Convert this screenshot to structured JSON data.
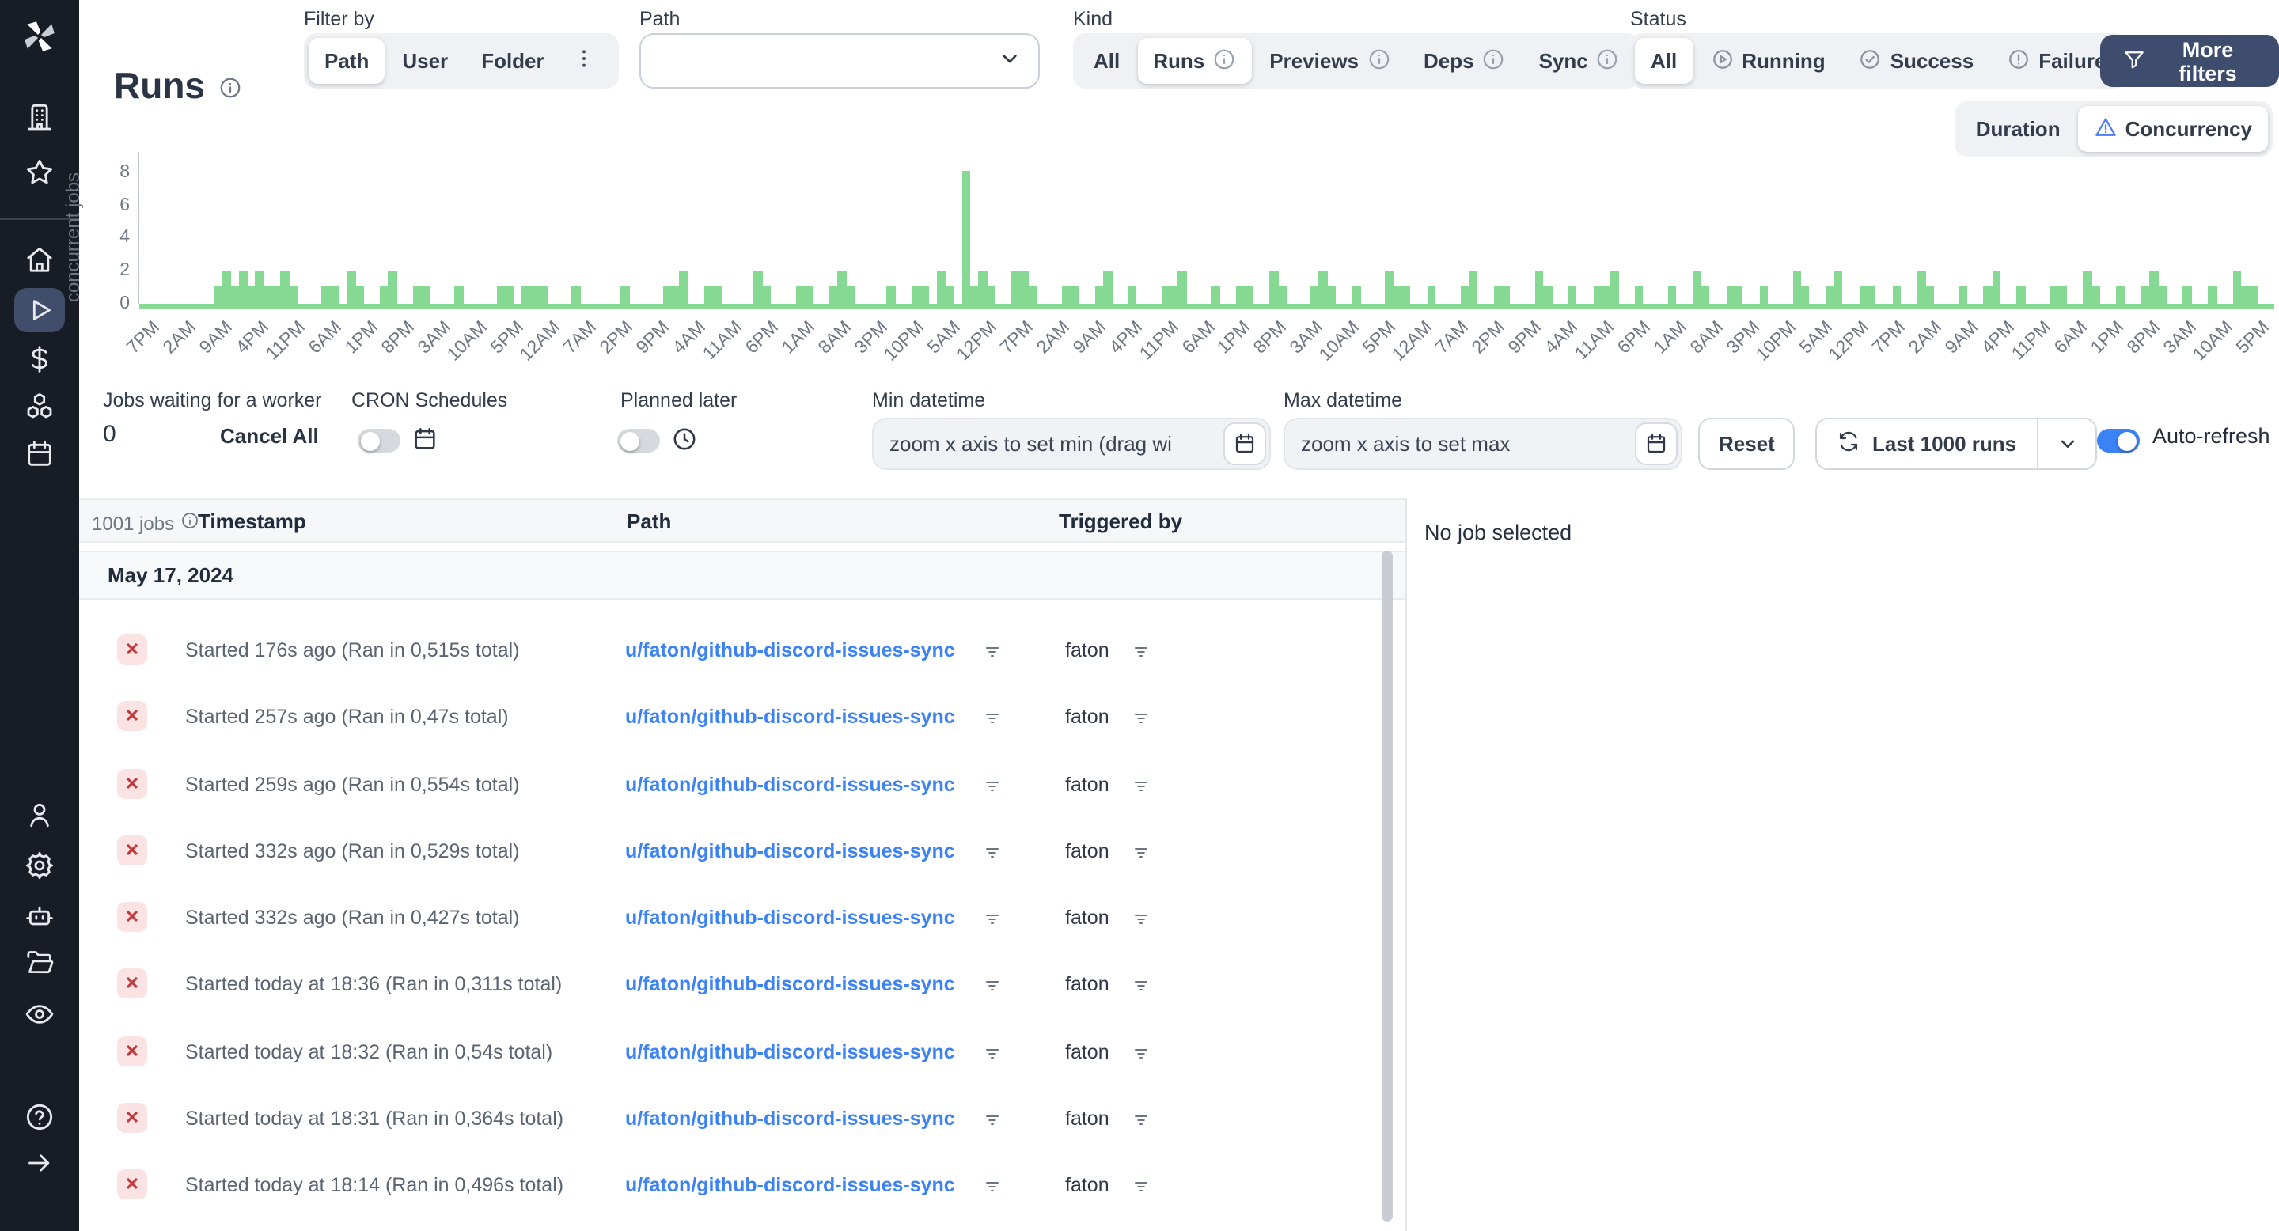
{
  "app_title": "Runs",
  "header": {
    "filter_by_label": "Filter by",
    "filter_by_options": [
      {
        "label": "Path",
        "active": true
      },
      {
        "label": "User"
      },
      {
        "label": "Folder"
      },
      {
        "label": "",
        "icon": "kebab-menu-icon"
      }
    ],
    "path_label": "Path",
    "path_value": "",
    "kind_label": "Kind",
    "kind_options": [
      {
        "label": "All"
      },
      {
        "label": "Runs",
        "active": true,
        "info": true
      },
      {
        "label": "Previews",
        "info": true
      },
      {
        "label": "Deps",
        "info": true
      },
      {
        "label": "Sync",
        "info": true
      }
    ],
    "status_label": "Status",
    "status_options": [
      {
        "label": "All",
        "active": true
      },
      {
        "label": "Running",
        "icon": "play-circle-icon"
      },
      {
        "label": "Success",
        "icon": "check-circle-icon"
      },
      {
        "label": "Failure",
        "icon": "alert-circle-icon"
      }
    ],
    "more_filters_label": "More filters"
  },
  "view_toggle": [
    {
      "label": "Duration"
    },
    {
      "label": "Concurrency",
      "active": true,
      "icon": "concurrency-warning-icon"
    }
  ],
  "chart_data": {
    "type": "bar",
    "title": "",
    "ylabel": "concurrent jobs",
    "xlabel": "",
    "ylim": [
      0,
      9
    ],
    "yticks": [
      0,
      2,
      4,
      6,
      8
    ],
    "grid": false,
    "legend": false,
    "bar_color": "#86d993",
    "x_tick_labels": [
      "7PM",
      "2AM",
      "9AM",
      "4PM",
      "11PM",
      "6AM",
      "1PM",
      "8PM",
      "3AM",
      "10AM",
      "5PM",
      "12AM",
      "7AM",
      "2PM",
      "9PM",
      "4AM",
      "11AM",
      "6PM",
      "1AM",
      "8AM",
      "3PM",
      "10PM",
      "5AM",
      "12PM",
      "7PM",
      "2AM",
      "9AM",
      "4PM",
      "11PM",
      "6AM",
      "1PM",
      "8PM",
      "3AM",
      "10AM",
      "5PM",
      "12AM",
      "7AM",
      "2PM",
      "9PM",
      "4AM",
      "11AM",
      "6PM",
      "1AM",
      "8AM",
      "3PM",
      "10PM",
      "5AM",
      "12PM",
      "7PM",
      "2AM",
      "9AM",
      "4PM",
      "11PM",
      "6AM",
      "1PM",
      "8PM",
      "3AM",
      "10AM",
      "5PM"
    ],
    "series": [
      {
        "name": "concurrent jobs",
        "values_rle": [
          [
            0,
            9
          ],
          [
            1,
            1
          ],
          [
            2,
            1
          ],
          [
            1,
            1
          ],
          [
            2,
            1
          ],
          [
            1,
            1
          ],
          [
            2,
            1
          ],
          [
            1,
            2
          ],
          [
            2,
            1
          ],
          [
            1,
            1
          ],
          [
            0,
            3
          ],
          [
            1,
            2
          ],
          [
            0,
            1
          ],
          [
            2,
            1
          ],
          [
            1,
            1
          ],
          [
            0,
            2
          ],
          [
            1,
            1
          ],
          [
            2,
            1
          ],
          [
            0,
            2
          ],
          [
            1,
            2
          ],
          [
            0,
            3
          ],
          [
            1,
            1
          ],
          [
            0,
            4
          ],
          [
            1,
            2
          ],
          [
            0,
            1
          ],
          [
            1,
            3
          ],
          [
            0,
            3
          ],
          [
            1,
            1
          ],
          [
            0,
            5
          ],
          [
            1,
            1
          ],
          [
            0,
            4
          ],
          [
            1,
            2
          ],
          [
            2,
            1
          ],
          [
            0,
            2
          ],
          [
            1,
            2
          ],
          [
            0,
            4
          ],
          [
            2,
            1
          ],
          [
            1,
            1
          ],
          [
            0,
            3
          ],
          [
            1,
            2
          ],
          [
            0,
            2
          ],
          [
            1,
            1
          ],
          [
            2,
            1
          ],
          [
            1,
            1
          ],
          [
            0,
            4
          ],
          [
            1,
            1
          ],
          [
            0,
            2
          ],
          [
            1,
            2
          ],
          [
            0,
            1
          ],
          [
            2,
            1
          ],
          [
            1,
            1
          ],
          [
            0,
            1
          ],
          [
            8,
            1
          ],
          [
            1,
            1
          ],
          [
            2,
            1
          ],
          [
            1,
            1
          ],
          [
            0,
            2
          ],
          [
            2,
            2
          ],
          [
            1,
            1
          ],
          [
            0,
            3
          ],
          [
            1,
            2
          ],
          [
            0,
            2
          ],
          [
            1,
            1
          ],
          [
            2,
            1
          ],
          [
            0,
            2
          ],
          [
            1,
            1
          ],
          [
            0,
            3
          ],
          [
            1,
            2
          ],
          [
            2,
            1
          ],
          [
            0,
            3
          ],
          [
            1,
            1
          ],
          [
            0,
            2
          ],
          [
            1,
            2
          ],
          [
            0,
            2
          ],
          [
            2,
            1
          ],
          [
            1,
            1
          ],
          [
            0,
            3
          ],
          [
            1,
            1
          ],
          [
            2,
            1
          ],
          [
            1,
            1
          ],
          [
            0,
            2
          ],
          [
            1,
            1
          ],
          [
            0,
            3
          ],
          [
            2,
            1
          ],
          [
            1,
            2
          ],
          [
            0,
            2
          ],
          [
            1,
            1
          ],
          [
            0,
            3
          ],
          [
            1,
            1
          ],
          [
            2,
            1
          ],
          [
            0,
            2
          ],
          [
            1,
            2
          ],
          [
            0,
            3
          ],
          [
            2,
            1
          ],
          [
            1,
            1
          ],
          [
            0,
            2
          ],
          [
            1,
            1
          ],
          [
            0,
            2
          ],
          [
            1,
            2
          ],
          [
            2,
            1
          ],
          [
            0,
            2
          ],
          [
            1,
            1
          ],
          [
            0,
            3
          ],
          [
            1,
            1
          ],
          [
            0,
            2
          ],
          [
            2,
            1
          ],
          [
            1,
            1
          ],
          [
            0,
            2
          ],
          [
            1,
            2
          ],
          [
            0,
            2
          ],
          [
            1,
            1
          ],
          [
            0,
            3
          ],
          [
            2,
            1
          ],
          [
            1,
            1
          ],
          [
            0,
            2
          ],
          [
            1,
            1
          ],
          [
            2,
            1
          ],
          [
            0,
            2
          ],
          [
            1,
            2
          ],
          [
            0,
            2
          ],
          [
            1,
            1
          ],
          [
            0,
            2
          ],
          [
            2,
            1
          ],
          [
            1,
            1
          ],
          [
            0,
            3
          ],
          [
            1,
            1
          ],
          [
            0,
            2
          ],
          [
            1,
            1
          ],
          [
            2,
            1
          ],
          [
            0,
            2
          ],
          [
            1,
            1
          ],
          [
            0,
            3
          ],
          [
            1,
            2
          ],
          [
            0,
            2
          ],
          [
            2,
            1
          ],
          [
            1,
            1
          ],
          [
            0,
            2
          ],
          [
            1,
            1
          ],
          [
            0,
            2
          ],
          [
            1,
            1
          ],
          [
            2,
            1
          ],
          [
            1,
            1
          ],
          [
            0,
            2
          ],
          [
            1,
            1
          ],
          [
            0,
            2
          ],
          [
            1,
            1
          ],
          [
            0,
            2
          ],
          [
            2,
            1
          ],
          [
            1,
            2
          ],
          [
            0,
            2
          ]
        ]
      }
    ]
  },
  "controls": {
    "jobs_waiting": {
      "label": "Jobs waiting for a worker",
      "value": "0",
      "cancel_all": "Cancel All"
    },
    "cron": {
      "label": "CRON Schedules",
      "enabled": false
    },
    "planned": {
      "label": "Planned later",
      "enabled": false
    },
    "min_datetime": {
      "label": "Min datetime",
      "placeholder": "zoom x axis to set min (drag wi"
    },
    "max_datetime": {
      "label": "Max datetime",
      "placeholder": "zoom x axis to set max"
    },
    "reset_label": "Reset",
    "refresh_scope_label": "Last 1000 runs",
    "auto_refresh": {
      "label": "Auto-refresh",
      "enabled": true
    }
  },
  "jobs_panel": {
    "count_label": "1001 jobs",
    "columns": {
      "timestamp": "Timestamp",
      "path": "Path",
      "triggered_by": "Triggered by"
    },
    "group_date": "May 17, 2024",
    "runs": [
      {
        "status": "failure",
        "timestamp": "Started 176s ago (Ran in 0,515s total)",
        "path": "u/faton/github-discord-issues-sync",
        "triggered_by": "faton"
      },
      {
        "status": "failure",
        "timestamp": "Started 257s ago (Ran in 0,47s total)",
        "path": "u/faton/github-discord-issues-sync",
        "triggered_by": "faton"
      },
      {
        "status": "failure",
        "timestamp": "Started 259s ago (Ran in 0,554s total)",
        "path": "u/faton/github-discord-issues-sync",
        "triggered_by": "faton"
      },
      {
        "status": "failure",
        "timestamp": "Started 332s ago (Ran in 0,529s total)",
        "path": "u/faton/github-discord-issues-sync",
        "triggered_by": "faton"
      },
      {
        "status": "failure",
        "timestamp": "Started 332s ago (Ran in 0,427s total)",
        "path": "u/faton/github-discord-issues-sync",
        "triggered_by": "faton"
      },
      {
        "status": "failure",
        "timestamp": "Started today at 18:36 (Ran in 0,311s total)",
        "path": "u/faton/github-discord-issues-sync",
        "triggered_by": "faton"
      },
      {
        "status": "failure",
        "timestamp": "Started today at 18:32 (Ran in 0,54s total)",
        "path": "u/faton/github-discord-issues-sync",
        "triggered_by": "faton"
      },
      {
        "status": "failure",
        "timestamp": "Started today at 18:31 (Ran in 0,364s total)",
        "path": "u/faton/github-discord-issues-sync",
        "triggered_by": "faton"
      },
      {
        "status": "failure",
        "timestamp": "Started today at 18:14 (Ran in 0,496s total)",
        "path": "u/faton/github-discord-issues-sync",
        "triggered_by": "faton"
      }
    ]
  },
  "detail_panel": {
    "empty_text": "No job selected"
  },
  "sidebar_icons": [
    {
      "name": "workspace-icon"
    },
    {
      "name": "favorites-star-icon"
    },
    {
      "name": "home-icon"
    },
    {
      "name": "runs-icon",
      "active": true
    },
    {
      "name": "variables-dollar-icon"
    },
    {
      "name": "resources-icon"
    },
    {
      "name": "schedules-icon"
    },
    {
      "name": "account-icon"
    },
    {
      "name": "settings-icon"
    },
    {
      "name": "workers-icon"
    },
    {
      "name": "folders-icon"
    },
    {
      "name": "audit-logs-icon"
    },
    {
      "name": "help-icon"
    },
    {
      "name": "collapse-sidebar-icon"
    }
  ],
  "colors": {
    "accent_blue": "#3b82f6",
    "bar_green": "#86d993",
    "navy_button": "#3e4c6e",
    "failure_red": "#c0393b",
    "failure_bg": "#fbe3e4",
    "sidebar_bg": "#181c25",
    "sidebar_active": "#414e6b"
  }
}
